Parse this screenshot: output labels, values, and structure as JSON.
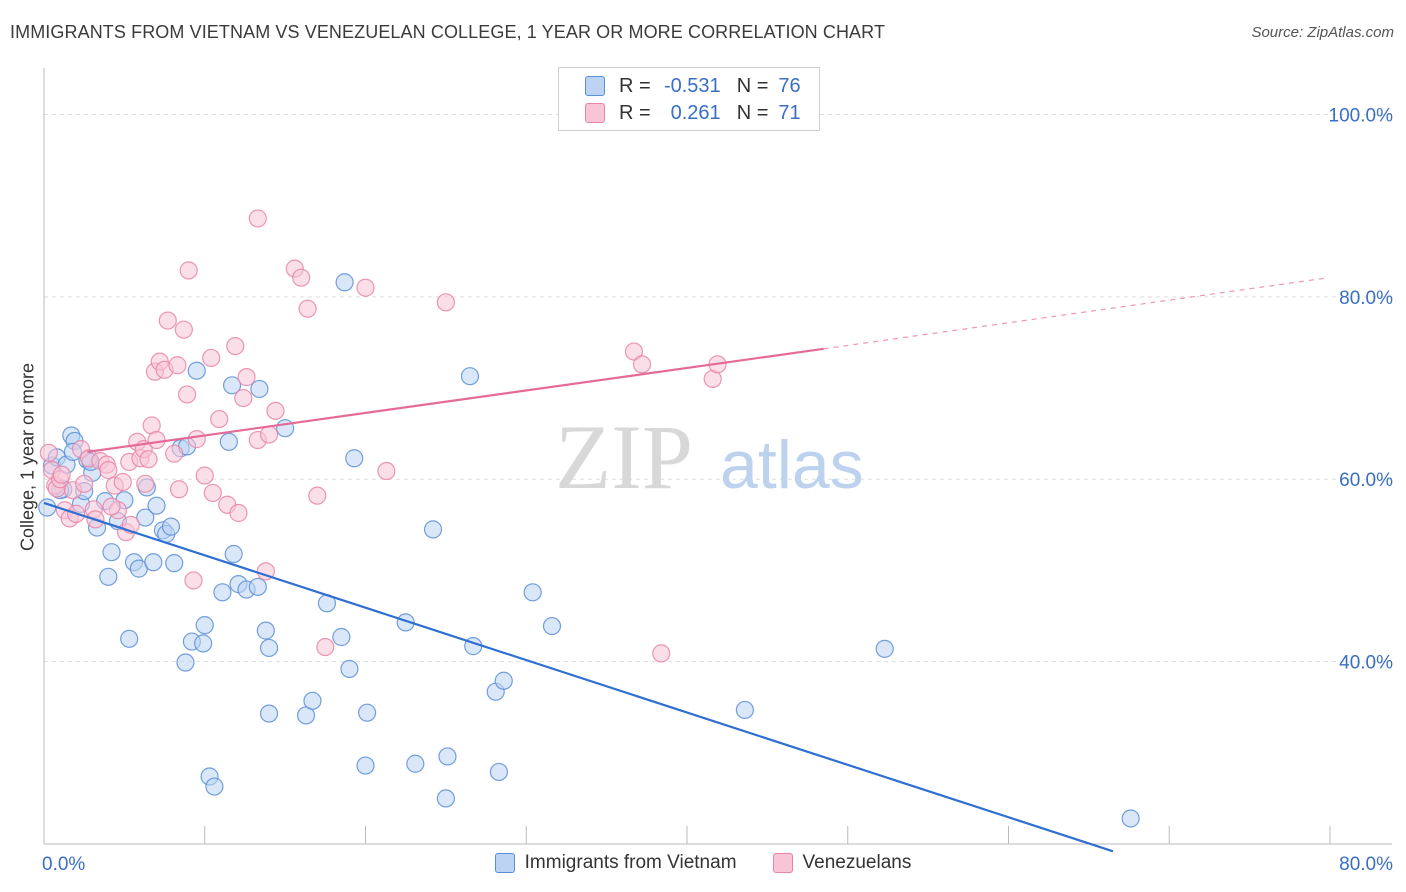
{
  "title": "IMMIGRANTS FROM VIETNAM VS VENEZUELAN COLLEGE, 1 YEAR OR MORE CORRELATION CHART",
  "source": "Source: ZipAtlas.com",
  "watermark": {
    "zip": "ZIP",
    "atlas": "atlas"
  },
  "legend": {
    "rows": [
      {
        "r_label": "R =",
        "r_value": "-0.531",
        "n_label": "N =",
        "n_value": "76",
        "color": "#5b8fd6",
        "fill": "#bcd3f3"
      },
      {
        "r_label": "R =",
        "r_value": "0.261",
        "n_label": "N =",
        "n_value": "71",
        "color": "#e785a8",
        "fill": "#f7c5d6"
      }
    ]
  },
  "chart_data": {
    "type": "scatter",
    "title": "IMMIGRANTS FROM VIETNAM VS VENEZUELAN COLLEGE, 1 YEAR OR MORE CORRELATION CHART",
    "xlabel": "",
    "ylabel": "College, 1 year or more",
    "xlim": [
      0,
      80
    ],
    "ylim": [
      20,
      104
    ],
    "x_ticks": [
      {
        "value": 0,
        "label": "0.0%"
      },
      {
        "value": 80,
        "label": "80.0%"
      }
    ],
    "y_ticks": [
      {
        "value": 40,
        "label": "40.0%"
      },
      {
        "value": 60,
        "label": "60.0%"
      },
      {
        "value": 80,
        "label": "80.0%"
      },
      {
        "value": 100,
        "label": "100.0%"
      }
    ],
    "grid": true,
    "legend_position": "bottom",
    "series": [
      {
        "name": "Immigrants from Vietnam",
        "color": "#5b8fd6",
        "fill": "#bcd3f3",
        "trend": {
          "x": [
            0,
            66.5
          ],
          "y": [
            57.4,
            19.2
          ],
          "dashed_to": null
        },
        "points": [
          [
            0.2,
            56.9
          ],
          [
            0.5,
            61.5
          ],
          [
            0.8,
            62.4
          ],
          [
            1.2,
            58.9
          ],
          [
            1.4,
            61.6
          ],
          [
            1.7,
            64.8
          ],
          [
            1.9,
            64.2
          ],
          [
            2.3,
            57.3
          ],
          [
            2.5,
            58.7
          ],
          [
            2.7,
            62.1
          ],
          [
            3.0,
            60.7
          ],
          [
            3.3,
            54.7
          ],
          [
            3.8,
            57.6
          ],
          [
            4.2,
            52.0
          ],
          [
            4.0,
            49.3
          ],
          [
            4.6,
            55.4
          ],
          [
            5.0,
            57.7
          ],
          [
            5.3,
            42.5
          ],
          [
            5.6,
            50.9
          ],
          [
            5.9,
            50.2
          ],
          [
            6.3,
            55.8
          ],
          [
            6.4,
            59.1
          ],
          [
            6.8,
            50.9
          ],
          [
            7.0,
            57.1
          ],
          [
            7.4,
            54.4
          ],
          [
            7.6,
            54.0
          ],
          [
            7.9,
            54.8
          ],
          [
            8.1,
            50.8
          ],
          [
            8.5,
            63.4
          ],
          [
            8.9,
            63.6
          ],
          [
            8.8,
            39.9
          ],
          [
            9.2,
            42.2
          ],
          [
            9.5,
            71.9
          ],
          [
            9.9,
            42.0
          ],
          [
            10.0,
            44.0
          ],
          [
            10.3,
            27.4
          ],
          [
            10.6,
            26.3
          ],
          [
            11.1,
            47.6
          ],
          [
            11.5,
            64.1
          ],
          [
            11.7,
            70.3
          ],
          [
            11.8,
            51.8
          ],
          [
            12.1,
            48.5
          ],
          [
            12.6,
            47.9
          ],
          [
            13.3,
            48.2
          ],
          [
            13.4,
            69.9
          ],
          [
            13.8,
            43.4
          ],
          [
            14.0,
            41.5
          ],
          [
            14.0,
            34.3
          ],
          [
            15.0,
            65.6
          ],
          [
            16.3,
            34.1
          ],
          [
            16.7,
            35.7
          ],
          [
            17.6,
            46.4
          ],
          [
            18.5,
            42.7
          ],
          [
            18.7,
            81.6
          ],
          [
            19.0,
            39.2
          ],
          [
            19.3,
            62.3
          ],
          [
            20.1,
            34.4
          ],
          [
            20.0,
            28.6
          ],
          [
            22.5,
            44.3
          ],
          [
            23.1,
            28.8
          ],
          [
            24.2,
            54.5
          ],
          [
            25.1,
            29.6
          ],
          [
            25.0,
            25.0
          ],
          [
            26.5,
            71.3
          ],
          [
            26.7,
            41.7
          ],
          [
            28.1,
            36.7
          ],
          [
            28.6,
            37.9
          ],
          [
            28.3,
            27.9
          ],
          [
            30.4,
            47.6
          ],
          [
            31.6,
            43.9
          ],
          [
            43.6,
            34.7
          ],
          [
            52.3,
            41.4
          ],
          [
            67.6,
            22.8
          ],
          [
            1.8,
            63.0
          ],
          [
            2.9,
            61.9
          ],
          [
            1.0,
            58.8
          ]
        ]
      },
      {
        "name": "Venezuelans",
        "color": "#e785a8",
        "fill": "#f7c5d6",
        "trend": {
          "x": [
            2.7,
            48.5
          ],
          "y": [
            63.0,
            74.3
          ],
          "dashed_to": [
            79.9,
            82.1
          ]
        },
        "points": [
          [
            0.3,
            62.9
          ],
          [
            0.5,
            61.0
          ],
          [
            0.7,
            59.3
          ],
          [
            0.8,
            59.0
          ],
          [
            1.0,
            60.0
          ],
          [
            1.3,
            56.6
          ],
          [
            1.6,
            55.7
          ],
          [
            1.8,
            58.8
          ],
          [
            2.3,
            63.3
          ],
          [
            2.5,
            59.5
          ],
          [
            2.8,
            62.3
          ],
          [
            3.1,
            56.7
          ],
          [
            3.2,
            55.6
          ],
          [
            3.5,
            62.0
          ],
          [
            3.9,
            61.6
          ],
          [
            4.0,
            61.0
          ],
          [
            4.4,
            59.3
          ],
          [
            4.6,
            56.6
          ],
          [
            4.9,
            59.7
          ],
          [
            5.1,
            54.2
          ],
          [
            5.3,
            61.9
          ],
          [
            5.4,
            55.0
          ],
          [
            5.8,
            64.1
          ],
          [
            6.0,
            62.3
          ],
          [
            6.2,
            63.3
          ],
          [
            6.3,
            59.5
          ],
          [
            6.5,
            62.2
          ],
          [
            6.7,
            65.9
          ],
          [
            6.9,
            71.8
          ],
          [
            7.2,
            72.9
          ],
          [
            7.5,
            72.0
          ],
          [
            7.7,
            77.4
          ],
          [
            8.1,
            62.8
          ],
          [
            8.3,
            72.5
          ],
          [
            8.4,
            58.9
          ],
          [
            8.7,
            76.4
          ],
          [
            8.9,
            69.3
          ],
          [
            9.0,
            82.9
          ],
          [
            9.3,
            48.9
          ],
          [
            9.5,
            64.4
          ],
          [
            10.0,
            60.4
          ],
          [
            10.4,
            73.3
          ],
          [
            10.5,
            58.5
          ],
          [
            10.9,
            66.6
          ],
          [
            11.4,
            57.2
          ],
          [
            11.9,
            74.6
          ],
          [
            12.1,
            56.3
          ],
          [
            12.4,
            68.9
          ],
          [
            12.6,
            71.2
          ],
          [
            13.3,
            64.3
          ],
          [
            13.3,
            88.6
          ],
          [
            13.8,
            49.9
          ],
          [
            14.0,
            64.9
          ],
          [
            14.4,
            67.5
          ],
          [
            15.6,
            83.1
          ],
          [
            16.0,
            82.1
          ],
          [
            16.4,
            78.7
          ],
          [
            17.0,
            58.2
          ],
          [
            17.5,
            41.6
          ],
          [
            20.0,
            81.0
          ],
          [
            21.3,
            60.9
          ],
          [
            25.0,
            79.4
          ],
          [
            36.7,
            74.0
          ],
          [
            37.2,
            72.6
          ],
          [
            38.4,
            40.9
          ],
          [
            41.6,
            71.0
          ],
          [
            41.9,
            72.6
          ],
          [
            1.1,
            60.5
          ],
          [
            2.0,
            56.2
          ],
          [
            4.2,
            57.0
          ],
          [
            7.0,
            64.3
          ]
        ]
      }
    ]
  }
}
